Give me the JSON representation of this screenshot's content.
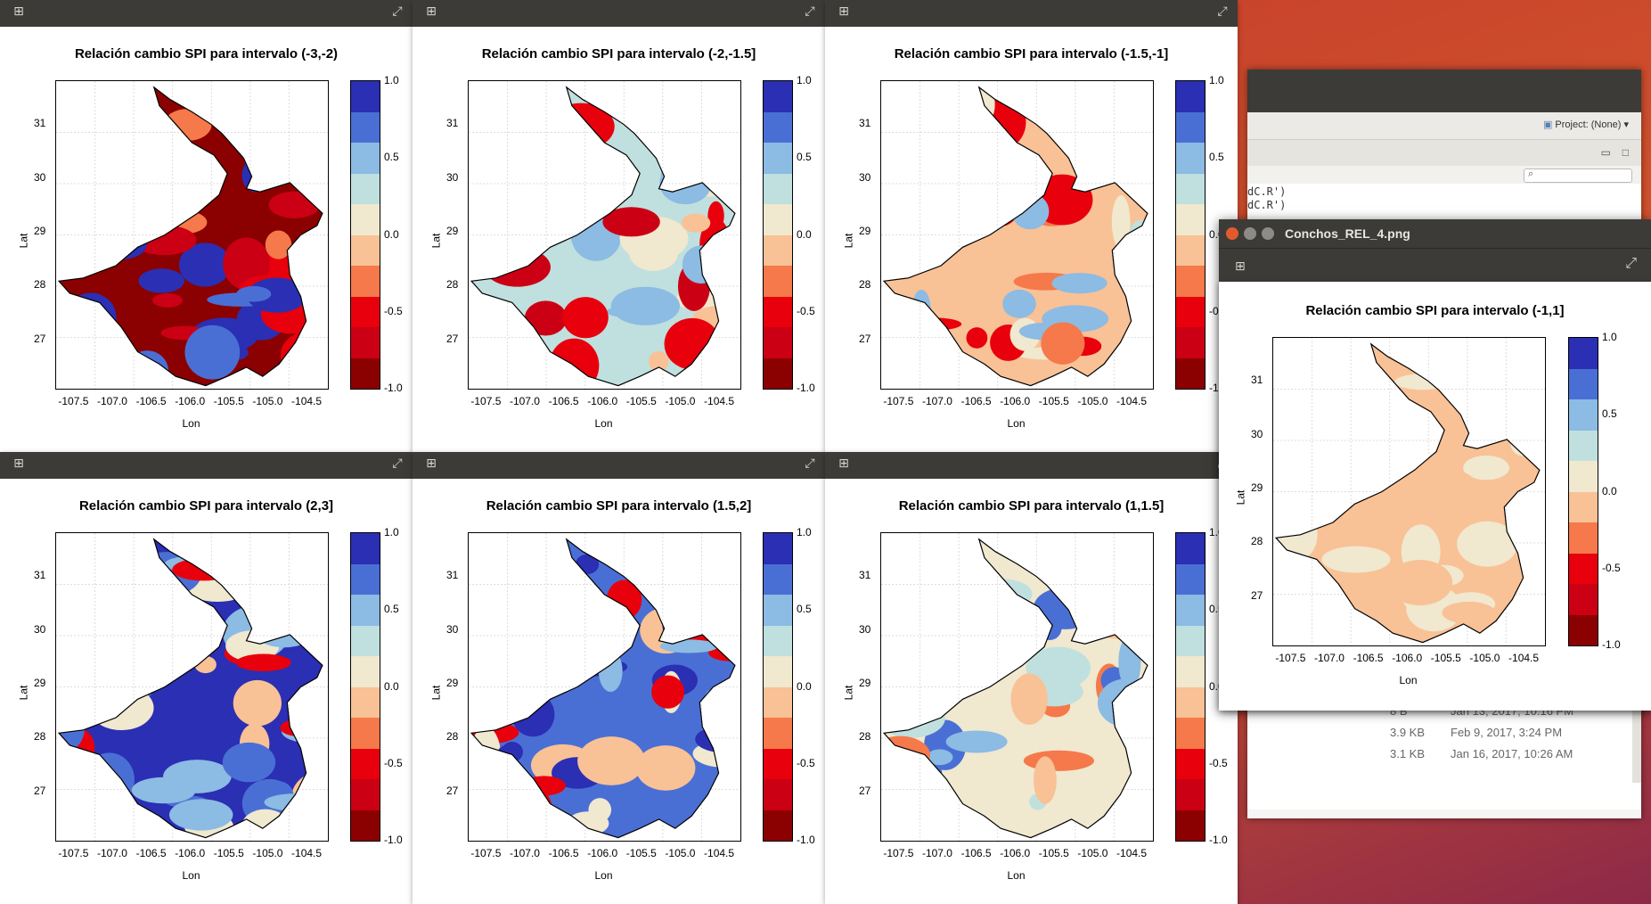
{
  "colorbar": {
    "colors": [
      "#2b2fb3",
      "#4a6fd4",
      "#8cbbe3",
      "#bfe0de",
      "#f0e8cf",
      "#f9c196",
      "#f5794a",
      "#e8000c",
      "#cc0014",
      "#8b0000"
    ],
    "labels": [
      "1.0",
      "0.5",
      "0.0",
      "-0.5",
      "-1.0"
    ]
  },
  "axes": {
    "lon_ticks": [
      "-107.5",
      "-107.0",
      "-106.5",
      "-106.0",
      "-105.5",
      "-105.0",
      "-104.5"
    ],
    "lat_ticks": [
      "31",
      "30",
      "29",
      "28",
      "27"
    ],
    "xlabel": "Lon",
    "ylabel": "Lat"
  },
  "plots": [
    {
      "title": "Relación cambio SPI para intervalo (-3,-2)",
      "scheme": "a"
    },
    {
      "title": "Relación cambio SPI para intervalo (-2,-1.5]",
      "scheme": "b"
    },
    {
      "title": "Relación cambio SPI para intervalo (-1.5,-1]",
      "scheme": "c"
    },
    {
      "title": "Relación cambio SPI para intervalo (2,3]",
      "scheme": "d"
    },
    {
      "title": "Relación cambio SPI para intervalo (1.5,2]",
      "scheme": "e"
    },
    {
      "title": "Relación cambio SPI para intervalo (1,1.5]",
      "scheme": "f"
    }
  ],
  "viewer": {
    "window_title": "Conchos_REL_4.png",
    "plot_title": "Relación cambio SPI para intervalo (-1,1]"
  },
  "rstudio": {
    "project_label": "Project: (None)",
    "console_lines": [
      "dC.R')",
      "dC.R')"
    ],
    "files": [
      {
        "size": "8 B",
        "modified": "Jan 13, 2017, 10:16 PM"
      },
      {
        "size": "3.9 KB",
        "modified": "Feb 9, 2017, 3:24 PM"
      },
      {
        "size": "3.1 KB",
        "modified": "Jan 16, 2017, 10:26 AM"
      }
    ]
  }
}
